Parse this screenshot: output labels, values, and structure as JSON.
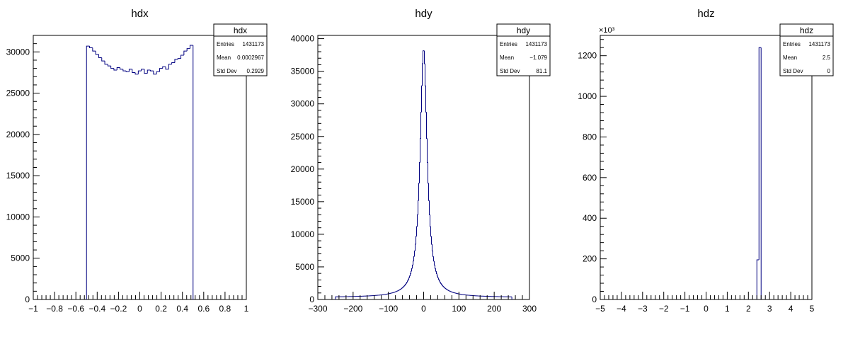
{
  "chart_data": [
    {
      "type": "histogram",
      "title": "hdx",
      "xlabel": "",
      "ylabel": "",
      "xlim": [
        -1,
        1
      ],
      "ylim": [
        0,
        32000
      ],
      "grid": false,
      "x_ticks": [
        -1,
        -0.8,
        -0.6,
        -0.4,
        -0.2,
        0,
        0.2,
        0.4,
        0.6,
        0.8,
        1
      ],
      "x_tick_labels": [
        "−1",
        "−0.8",
        "−0.6",
        "−0.4",
        "−0.2",
        "0",
        "0.2",
        "0.4",
        "0.6",
        "0.8",
        "1"
      ],
      "y_ticks": [
        0,
        5000,
        10000,
        15000,
        20000,
        25000,
        30000
      ],
      "y_tick_labels": [
        "0",
        "5000",
        "10000",
        "15000",
        "20000",
        "25000",
        "30000"
      ],
      "y_exponent": "",
      "color": "#000080",
      "bin_edges_range": [
        -0.5,
        0.5
      ],
      "values": [
        30700,
        30500,
        30100,
        29700,
        29300,
        28900,
        28500,
        28300,
        28000,
        27800,
        28100,
        27900,
        27700,
        27600,
        27900,
        27500,
        27300,
        27700,
        27900,
        27400,
        27800,
        27700,
        27300,
        27600,
        28000,
        28200,
        27900,
        28500,
        28700,
        29100,
        29200,
        29600,
        30100,
        30400,
        30800
      ],
      "stats": {
        "title": "hdx",
        "rows": [
          {
            "label": "Entries",
            "value": "1431173"
          },
          {
            "label": "Mean",
            "value": "0.0002967"
          },
          {
            "label": "Std Dev",
            "value": "0.2929"
          }
        ]
      }
    },
    {
      "type": "histogram",
      "title": "hdy",
      "xlabel": "",
      "ylabel": "",
      "xlim": [
        -300,
        300
      ],
      "ylim": [
        0,
        40500
      ],
      "grid": false,
      "x_ticks": [
        -300,
        -200,
        -100,
        0,
        100,
        200,
        300
      ],
      "x_tick_labels": [
        "−300",
        "−200",
        "−100",
        "0",
        "100",
        "200",
        "300"
      ],
      "y_ticks": [
        0,
        5000,
        10000,
        15000,
        20000,
        25000,
        30000,
        35000,
        40000
      ],
      "y_tick_labels": [
        "0",
        "5000",
        "10000",
        "15000",
        "20000",
        "25000",
        "30000",
        "35000",
        "40000"
      ],
      "y_exponent": "",
      "color": "#000080",
      "bin_edges_range": [
        -250,
        250
      ],
      "bin_width": 2,
      "peak": 38400,
      "peak_x": 0,
      "gamma": 12,
      "background": 320,
      "stats": {
        "title": "hdy",
        "rows": [
          {
            "label": "Entries",
            "value": "1431173"
          },
          {
            "label": "Mean",
            "value": "−1.079"
          },
          {
            "label": "Std Dev",
            "value": "81.1"
          }
        ]
      }
    },
    {
      "type": "histogram",
      "title": "hdz",
      "xlabel": "",
      "ylabel": "",
      "xlim": [
        -5,
        5
      ],
      "ylim": [
        0,
        1300
      ],
      "grid": false,
      "x_ticks": [
        -5,
        -4,
        -3,
        -2,
        -1,
        0,
        1,
        2,
        3,
        4,
        5
      ],
      "x_tick_labels": [
        "−5",
        "−4",
        "−3",
        "−2",
        "−1",
        "0",
        "1",
        "2",
        "3",
        "4",
        "5"
      ],
      "y_ticks": [
        0,
        200,
        400,
        600,
        800,
        1000,
        1200
      ],
      "y_tick_labels": [
        "0",
        "200",
        "400",
        "600",
        "800",
        "1000",
        "1200"
      ],
      "y_exponent": "×10³",
      "color": "#000080",
      "bars": [
        {
          "x0": 2.4,
          "x1": 2.5,
          "value": 195
        },
        {
          "x0": 2.5,
          "x1": 2.6,
          "value": 1240
        }
      ],
      "stats": {
        "title": "hdz",
        "rows": [
          {
            "label": "Entries",
            "value": "1431173"
          },
          {
            "label": "Mean",
            "value": "2.5"
          },
          {
            "label": "Std Dev",
            "value": "0"
          }
        ]
      }
    }
  ]
}
